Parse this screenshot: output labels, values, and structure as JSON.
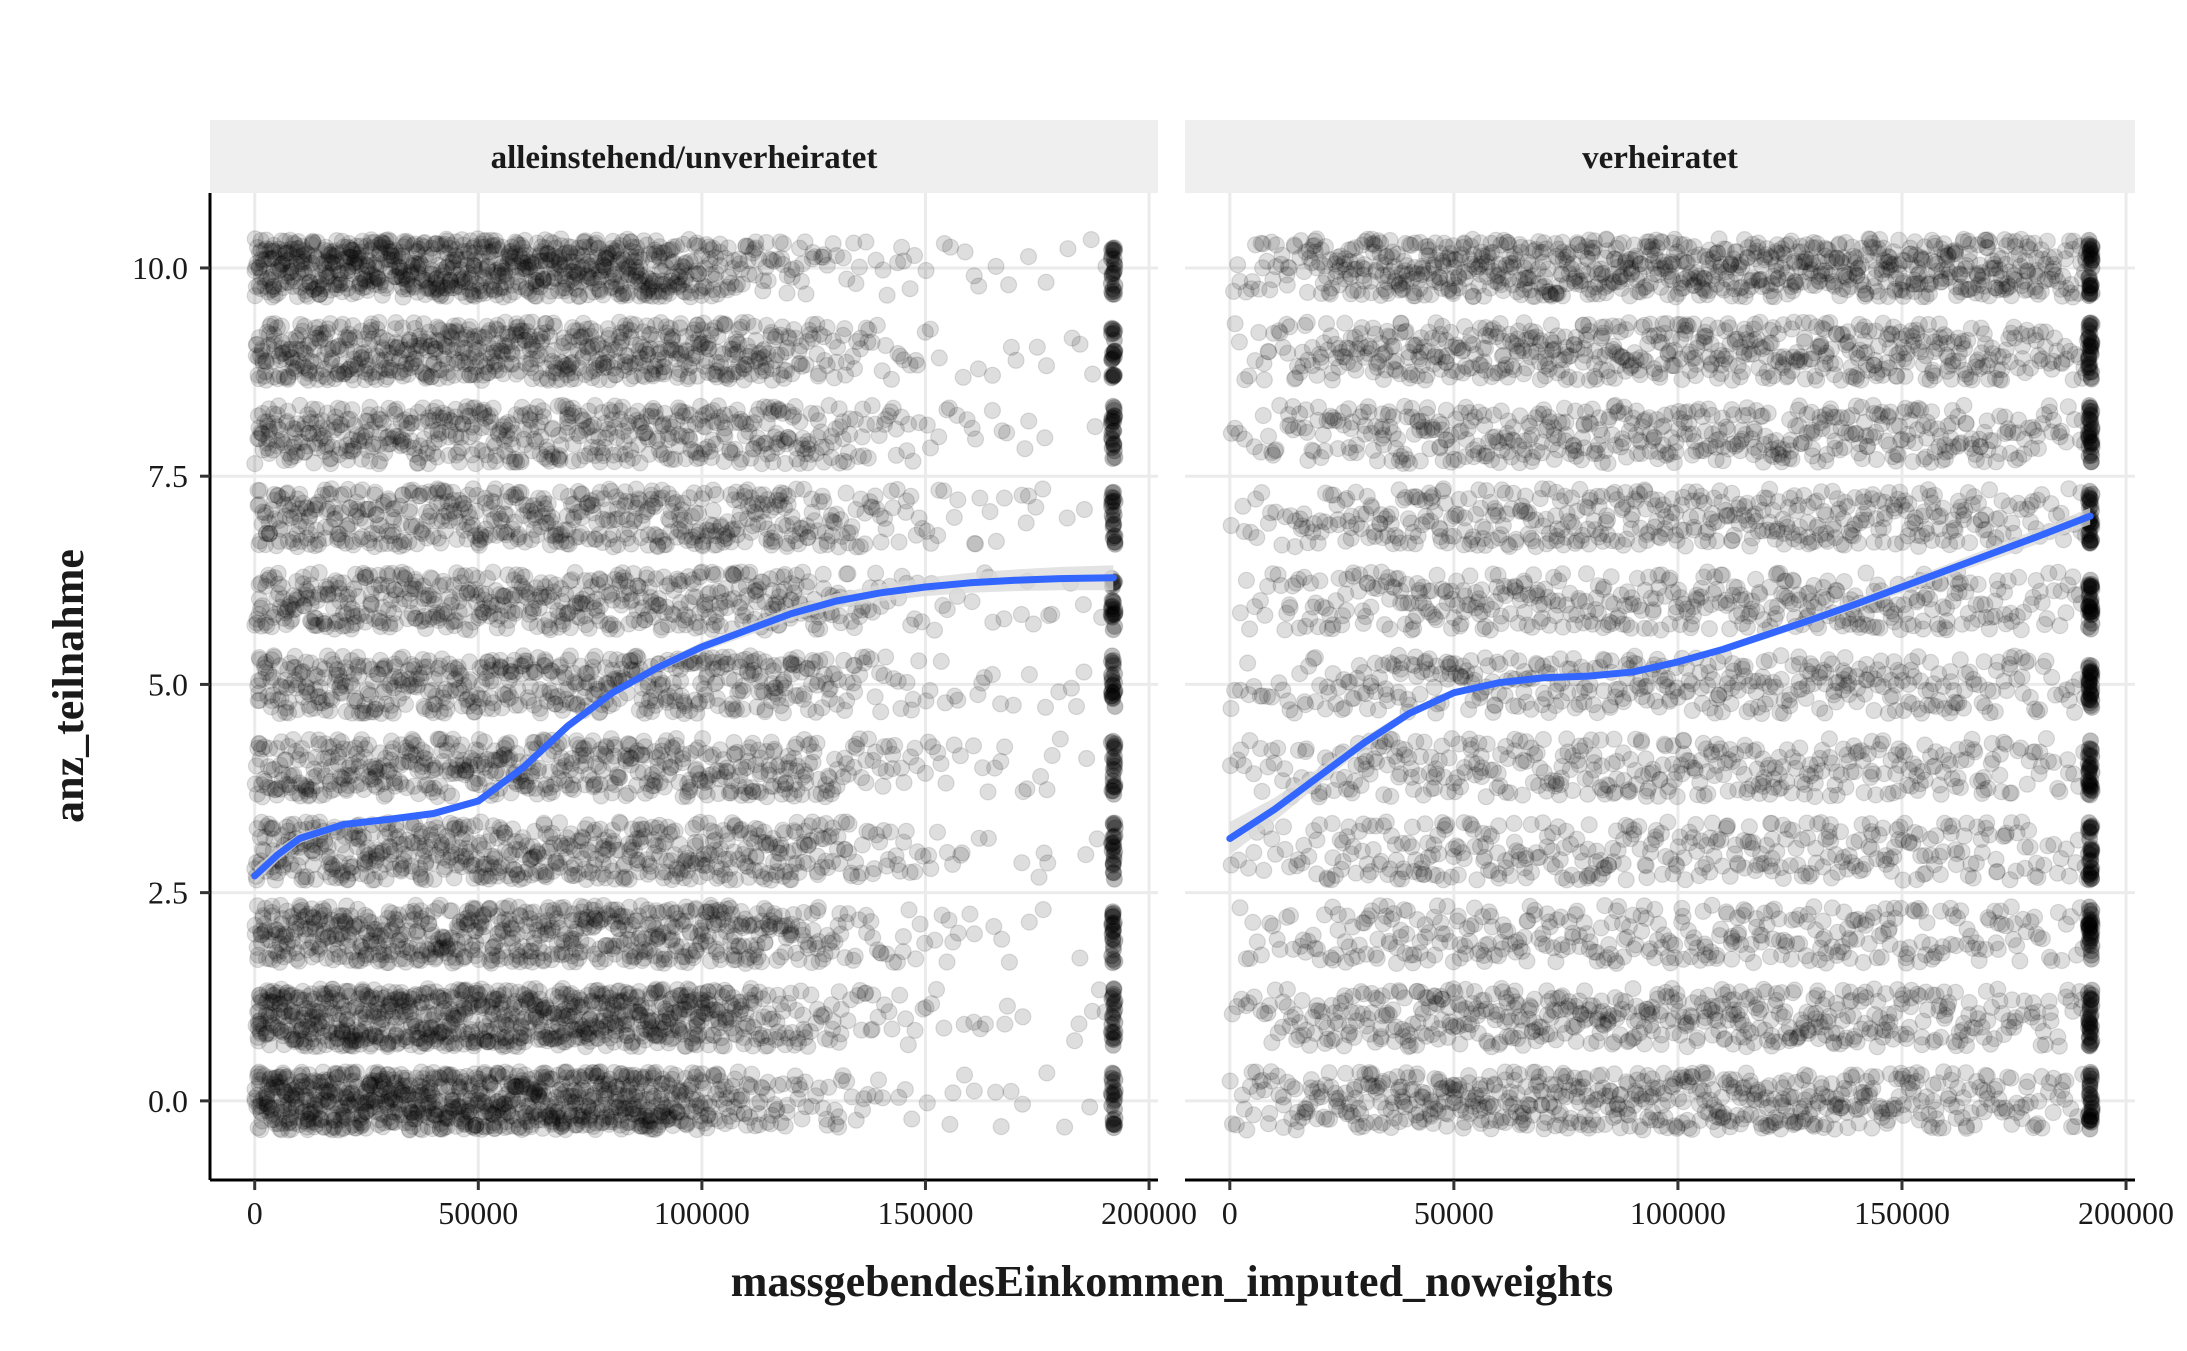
{
  "chart_data": {
    "type": "scatter",
    "title": "",
    "xlabel": "massgebendesEinkommen_imputed_noweights",
    "ylabel": "anz_teilnahme",
    "xlim": [
      -10000,
      202000
    ],
    "ylim": [
      -0.95,
      10.9
    ],
    "x_ticks": [
      0,
      50000,
      100000,
      150000,
      200000
    ],
    "x_tick_labels": [
      "0",
      "50000",
      "100000",
      "150000",
      "200000"
    ],
    "y_ticks": [
      0,
      2.5,
      5,
      7.5,
      10
    ],
    "y_tick_labels": [
      "0.0",
      "2.5",
      "5.0",
      "7.5",
      "10.0"
    ],
    "grid": true,
    "point_color": "#000000",
    "point_alpha": 0.13,
    "jitter_height": 0.35,
    "smooth_color": "#3366ff",
    "smooth_band_color": "#d9d9d9",
    "strip_fill": "#efefef",
    "facets": [
      {
        "label": "alleinstehend/unverheiratet",
        "density_by_count": [
          {
            "count": 0,
            "start": 100,
            "fade": 0.55,
            "floor": 0.02
          },
          {
            "count": 1,
            "start": 85,
            "fade": 0.5,
            "floor": 0.02
          },
          {
            "count": 2,
            "start": 60,
            "fade": 0.45,
            "floor": 0.02
          },
          {
            "count": 3,
            "start": 50,
            "fade": 0.4,
            "floor": 0.02
          },
          {
            "count": 4,
            "start": 45,
            "fade": 0.4,
            "floor": 0.02
          },
          {
            "count": 5,
            "start": 45,
            "fade": 0.4,
            "floor": 0.02
          },
          {
            "count": 6,
            "start": 45,
            "fade": 0.4,
            "floor": 0.02
          },
          {
            "count": 7,
            "start": 45,
            "fade": 0.4,
            "floor": 0.02
          },
          {
            "count": 8,
            "start": 45,
            "fade": 0.4,
            "floor": 0.02
          },
          {
            "count": 9,
            "start": 60,
            "fade": 0.45,
            "floor": 0.02
          },
          {
            "count": 10,
            "start": 90,
            "fade": 0.55,
            "floor": 0.03
          }
        ],
        "cap_x": 192000,
        "cap_density": 22,
        "smooth": {
          "x": [
            0,
            5000,
            10000,
            20000,
            30000,
            40000,
            50000,
            60000,
            70000,
            80000,
            90000,
            100000,
            110000,
            120000,
            130000,
            140000,
            150000,
            160000,
            170000,
            180000,
            192000
          ],
          "y": [
            2.7,
            2.95,
            3.15,
            3.32,
            3.38,
            3.45,
            3.6,
            4.0,
            4.5,
            4.9,
            5.2,
            5.45,
            5.65,
            5.85,
            6.0,
            6.1,
            6.17,
            6.22,
            6.25,
            6.27,
            6.28
          ],
          "band": [
            0.1,
            0.08,
            0.06,
            0.04,
            0.03,
            0.03,
            0.03,
            0.03,
            0.03,
            0.04,
            0.05,
            0.06,
            0.07,
            0.08,
            0.09,
            0.1,
            0.11,
            0.12,
            0.13,
            0.14,
            0.15
          ]
        }
      },
      {
        "label": "verheiratet",
        "density_by_count": [
          {
            "count": 0,
            "start": 12,
            "peak": 38,
            "fade": 0.35,
            "floor": 0.03
          },
          {
            "count": 1,
            "start": 10,
            "peak": 32,
            "fade": 0.3,
            "floor": 0.03
          },
          {
            "count": 2,
            "start": 6,
            "peak": 22,
            "fade": 0.25,
            "floor": 0.03
          },
          {
            "count": 3,
            "start": 6,
            "peak": 22,
            "fade": 0.2,
            "floor": 0.04
          },
          {
            "count": 4,
            "start": 6,
            "peak": 24,
            "fade": 0.2,
            "floor": 0.04
          },
          {
            "count": 5,
            "start": 6,
            "peak": 24,
            "fade": 0.2,
            "floor": 0.04
          },
          {
            "count": 6,
            "start": 6,
            "peak": 26,
            "fade": 0.2,
            "floor": 0.05
          },
          {
            "count": 7,
            "start": 6,
            "peak": 28,
            "fade": 0.2,
            "floor": 0.05
          },
          {
            "count": 8,
            "start": 6,
            "peak": 30,
            "fade": 0.2,
            "floor": 0.06
          },
          {
            "count": 9,
            "start": 8,
            "peak": 36,
            "fade": 0.15,
            "floor": 0.08
          },
          {
            "count": 10,
            "start": 10,
            "peak": 50,
            "fade": 0.1,
            "floor": 0.1
          }
        ],
        "cap_x": 192000,
        "cap_density": 30,
        "smooth": {
          "x": [
            0,
            10000,
            20000,
            30000,
            40000,
            50000,
            60000,
            70000,
            80000,
            90000,
            100000,
            110000,
            120000,
            130000,
            140000,
            150000,
            160000,
            170000,
            180000,
            192000
          ],
          "y": [
            3.15,
            3.5,
            3.9,
            4.3,
            4.65,
            4.9,
            5.02,
            5.08,
            5.1,
            5.15,
            5.27,
            5.42,
            5.6,
            5.78,
            5.97,
            6.17,
            6.37,
            6.57,
            6.77,
            7.02
          ],
          "band": [
            0.2,
            0.14,
            0.1,
            0.07,
            0.05,
            0.04,
            0.04,
            0.04,
            0.04,
            0.04,
            0.04,
            0.04,
            0.05,
            0.05,
            0.06,
            0.07,
            0.07,
            0.08,
            0.09,
            0.1
          ]
        }
      }
    ]
  }
}
